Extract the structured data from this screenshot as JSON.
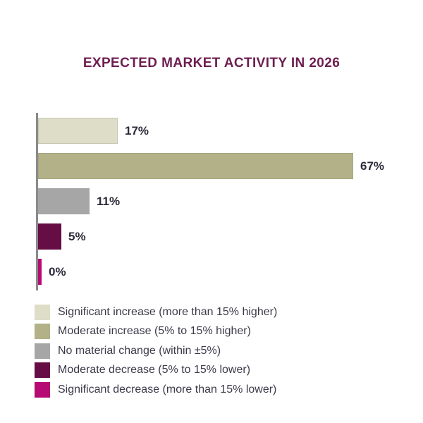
{
  "page": {
    "background": "#ffffff"
  },
  "title": {
    "text": "EXPECTED MARKET ACTIVITY IN 2026",
    "color": "#6E1E50"
  },
  "chart_data": {
    "type": "bar",
    "orientation": "horizontal",
    "title": "EXPECTED MARKET ACTIVITY IN 2026",
    "categories": [
      "Significant increase (more than 15% higher)",
      "Moderate increase (5% to 15% higher)",
      "No material change (within ±5%)",
      "Moderate decrease (5% to 15% lower)",
      "Significant decrease (more than 15% lower)"
    ],
    "values": [
      17,
      67,
      11,
      5,
      0
    ],
    "value_labels": [
      "17%",
      "67%",
      "11%",
      "5%",
      "0%"
    ],
    "colors": [
      "#DEDDC7",
      "#B2B188",
      "#A6A6A6",
      "#670D45",
      "#B60A74"
    ],
    "xlabel": "",
    "ylabel": "",
    "xlim": [
      0,
      70
    ],
    "grid": false,
    "axis_line_color": "#8A8A8A",
    "value_label_color": "#2D2A3A",
    "legend_position": "bottom-left"
  },
  "legend": {
    "text_color": "#3C3A49",
    "items": [
      {
        "label": "Significant increase (more than 15% higher)",
        "color": "#DEDDC7"
      },
      {
        "label": "Moderate increase (5% to 15% higher)",
        "color": "#B2B188"
      },
      {
        "label": "No material change (within ±5%)",
        "color": "#A6A6A6"
      },
      {
        "label": "Moderate decrease (5% to 15% lower)",
        "color": "#670D45"
      },
      {
        "label": "Significant decrease (more than 15% lower)",
        "color": "#B60A74"
      }
    ]
  }
}
